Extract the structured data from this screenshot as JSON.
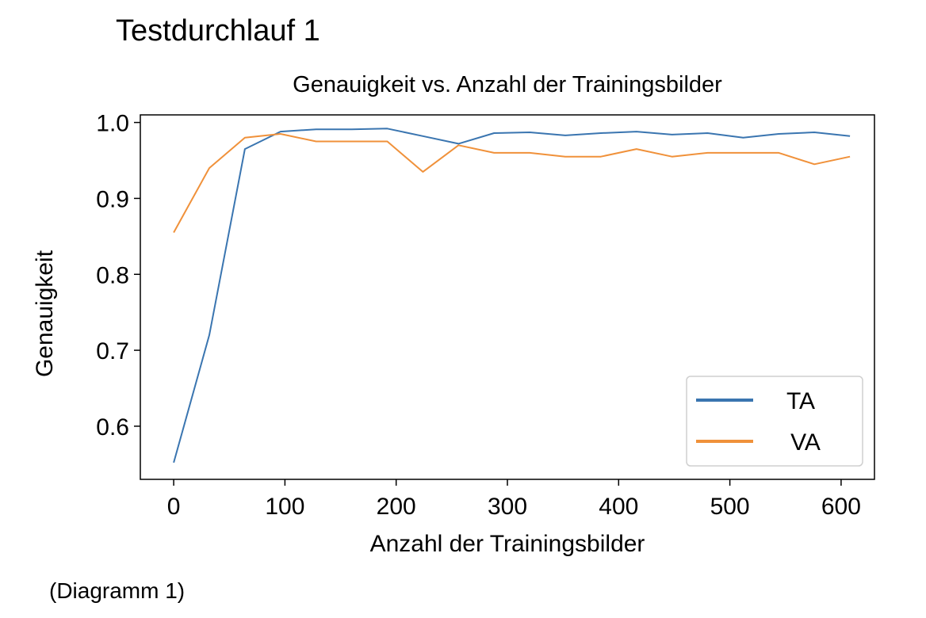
{
  "heading": "Testdurchlauf 1",
  "caption": "(Diagramm 1)",
  "chart_data": {
    "type": "line",
    "title": "Genauigkeit vs. Anzahl der Trainingsbilder",
    "xlabel": "Anzahl der Trainingsbilder",
    "ylabel": "Genauigkeit",
    "xlim": [
      -30,
      630
    ],
    "ylim": [
      0.53,
      1.01
    ],
    "x_ticks": [
      0,
      100,
      200,
      300,
      400,
      500,
      600
    ],
    "x_tick_labels": [
      "0",
      "100",
      "200",
      "300",
      "400",
      "500",
      "600"
    ],
    "y_ticks": [
      0.6,
      0.7,
      0.8,
      0.9,
      1.0
    ],
    "y_tick_labels": [
      "0.6",
      "0.7",
      "0.8",
      "0.9",
      "1.0"
    ],
    "grid": false,
    "legend_position": "lower-right",
    "x": [
      0,
      32,
      64,
      96,
      128,
      160,
      192,
      224,
      256,
      288,
      320,
      352,
      384,
      416,
      448,
      480,
      512,
      544,
      576,
      608
    ],
    "series": [
      {
        "name": "TA",
        "color": "#3a75b0",
        "values": [
          0.552,
          0.72,
          0.965,
          0.988,
          0.991,
          0.991,
          0.992,
          0.982,
          0.972,
          0.986,
          0.987,
          0.983,
          0.986,
          0.988,
          0.984,
          0.986,
          0.98,
          0.985,
          0.987,
          0.982
        ]
      },
      {
        "name": "VA",
        "color": "#f0913a",
        "values": [
          0.855,
          0.94,
          0.98,
          0.985,
          0.975,
          0.975,
          0.975,
          0.935,
          0.97,
          0.96,
          0.96,
          0.955,
          0.955,
          0.965,
          0.955,
          0.96,
          0.96,
          0.96,
          0.945,
          0.955
        ]
      }
    ]
  }
}
